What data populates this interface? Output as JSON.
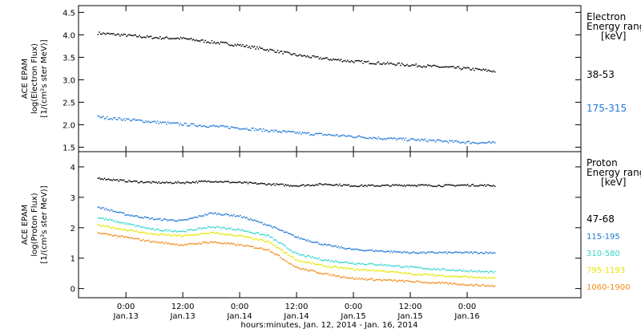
{
  "chart_data": [
    {
      "type": "scatter",
      "panel": "electron",
      "ylabel_lines": [
        "ACE EPAM",
        "log(Electron Flux)",
        "[1/(cm²s ster MeV)]"
      ],
      "ylim": [
        1.4,
        4.65
      ],
      "yticks": [
        1.5,
        2.0,
        2.5,
        3.0,
        3.5,
        4.0,
        4.5
      ],
      "ytick_labels": [
        "1.5",
        "2.0",
        "2.5",
        "3.0",
        "3.5",
        "4.0",
        "4.5"
      ],
      "legend_title_lines": [
        "Electron",
        "Energy range",
        "[keV]"
      ],
      "series": [
        {
          "name": "38-53",
          "color": "#000000",
          "x": [
            -6,
            0,
            6,
            12,
            18,
            24,
            30,
            36,
            42,
            48,
            54,
            60,
            66,
            72,
            78
          ],
          "y": [
            4.05,
            4.0,
            3.95,
            3.93,
            3.85,
            3.78,
            3.68,
            3.56,
            3.48,
            3.42,
            3.38,
            3.34,
            3.3,
            3.26,
            3.2
          ]
        },
        {
          "name": "175-315",
          "color": "#1f77d4",
          "x": [
            -6,
            0,
            6,
            12,
            18,
            24,
            30,
            36,
            42,
            48,
            54,
            60,
            66,
            72,
            78
          ],
          "y": [
            2.18,
            2.13,
            2.07,
            2.02,
            1.98,
            1.94,
            1.88,
            1.83,
            1.79,
            1.75,
            1.71,
            1.68,
            1.65,
            1.62,
            1.6
          ]
        }
      ]
    },
    {
      "type": "scatter",
      "panel": "proton",
      "ylabel_lines": [
        "ACE EPAM",
        "log(Proton Flux)",
        "[1/(cm²s ster MeV)]"
      ],
      "ylim": [
        -0.3,
        4.5
      ],
      "yticks": [
        0,
        1,
        2,
        3,
        4
      ],
      "ytick_labels": [
        "0",
        "1",
        "2",
        "3",
        "4"
      ],
      "legend_title_lines": [
        "Proton",
        "Energy range",
        "[keV]"
      ],
      "series": [
        {
          "name": "47-68",
          "color": "#000000",
          "x": [
            -6,
            0,
            6,
            12,
            18,
            24,
            30,
            36,
            42,
            48,
            54,
            60,
            66,
            72,
            78
          ],
          "y": [
            3.65,
            3.55,
            3.5,
            3.5,
            3.55,
            3.5,
            3.45,
            3.4,
            3.45,
            3.4,
            3.4,
            3.42,
            3.4,
            3.42,
            3.4
          ]
        },
        {
          "name": "115-195",
          "color": "#1f77d4",
          "x": [
            -6,
            0,
            6,
            12,
            18,
            24,
            30,
            36,
            42,
            48,
            54,
            60,
            66,
            72,
            78
          ],
          "y": [
            2.7,
            2.45,
            2.3,
            2.25,
            2.5,
            2.4,
            2.1,
            1.7,
            1.45,
            1.3,
            1.25,
            1.2,
            1.2,
            1.2,
            1.2
          ]
        },
        {
          "name": "310-580",
          "color": "#33d6cc",
          "x": [
            -6,
            0,
            6,
            12,
            18,
            24,
            30,
            36,
            42,
            48,
            54,
            60,
            66,
            72,
            78
          ],
          "y": [
            2.35,
            2.15,
            1.95,
            1.9,
            2.05,
            1.95,
            1.75,
            1.15,
            0.95,
            0.85,
            0.8,
            0.72,
            0.65,
            0.6,
            0.55
          ]
        },
        {
          "name": "795-1193",
          "color": "#e6e600",
          "x": [
            -6,
            0,
            6,
            12,
            18,
            24,
            30,
            36,
            42,
            48,
            54,
            60,
            66,
            72,
            78
          ],
          "y": [
            2.1,
            1.95,
            1.8,
            1.75,
            1.85,
            1.75,
            1.55,
            0.95,
            0.75,
            0.65,
            0.6,
            0.5,
            0.45,
            0.4,
            0.35
          ]
        },
        {
          "name": "1060-1900",
          "color": "#f08a1a",
          "x": [
            -6,
            0,
            6,
            12,
            18,
            24,
            30,
            36,
            42,
            48,
            54,
            60,
            66,
            72,
            78
          ],
          "y": [
            1.85,
            1.7,
            1.55,
            1.45,
            1.55,
            1.45,
            1.3,
            0.7,
            0.5,
            0.35,
            0.3,
            0.25,
            0.2,
            0.15,
            0.1
          ]
        }
      ]
    }
  ],
  "x_axis": {
    "xlim": [
      -10,
      96
    ],
    "ticks": [
      {
        "x": 0,
        "time": "0:00",
        "date": "Jan.13"
      },
      {
        "x": 12,
        "time": "12:00",
        "date": "Jan.13"
      },
      {
        "x": 24,
        "time": "0:00",
        "date": "Jan.14"
      },
      {
        "x": 36,
        "time": "12:00",
        "date": "Jan.14"
      },
      {
        "x": 48,
        "time": "0:00",
        "date": "Jan.15"
      },
      {
        "x": 60,
        "time": "12:00",
        "date": "Jan.15"
      },
      {
        "x": 72,
        "time": "0:00",
        "date": "Jan.16"
      }
    ],
    "xlabel": "hours:minutes, Jan. 12, 2014 - Jan. 16, 2014"
  }
}
